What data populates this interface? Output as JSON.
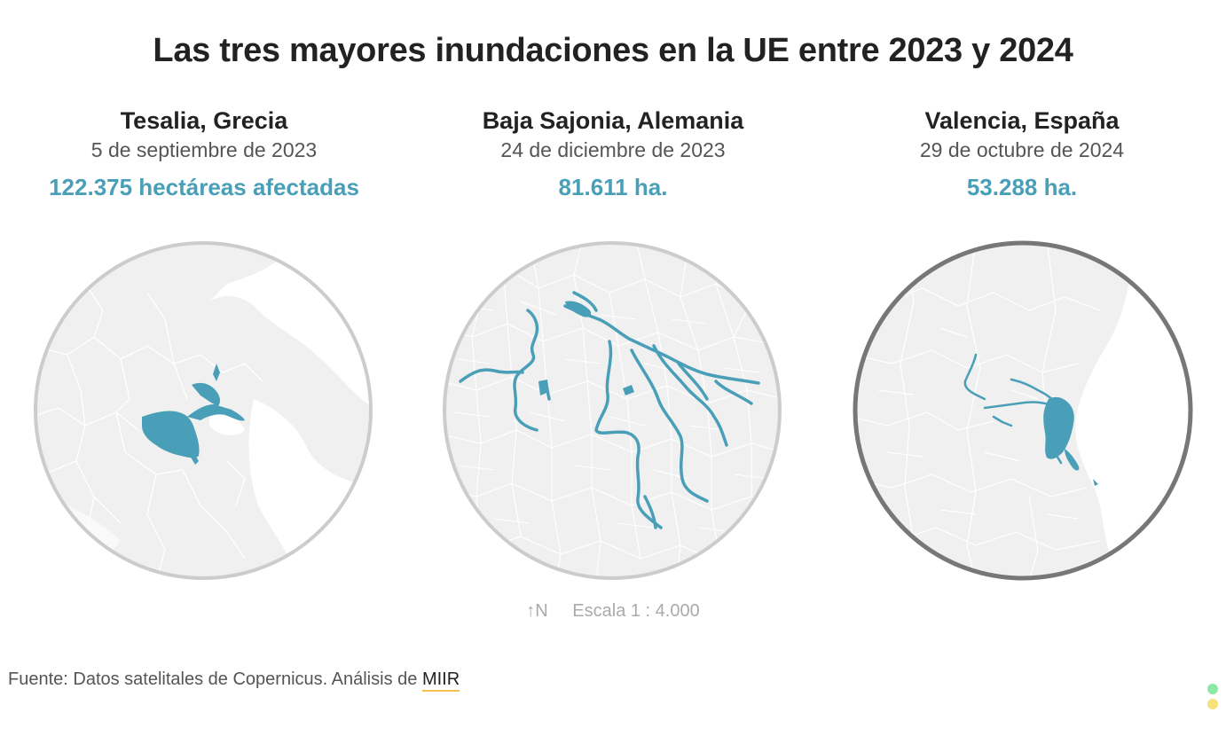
{
  "title": "Las tres mayores inundaciones en la UE entre 2023 y 2024",
  "panels": [
    {
      "place": "Tesalia, Grecia",
      "date": "5 de septiembre de 2023",
      "area": "122.375 hectáreas afectadas"
    },
    {
      "place": "Baja Sajonia, Alemania",
      "date": "24 de diciembre de 2023",
      "area": "81.611 ha."
    },
    {
      "place": "Valencia, España",
      "date": "29 de octubre de 2024",
      "area": "53.288 ha."
    }
  ],
  "scale": {
    "north": "↑N",
    "label": "Escala 1 : 4.000"
  },
  "footer": {
    "text": "Fuente: Datos satelitales de Copernicus. Análisis de ",
    "link": "MIIR"
  },
  "colors": {
    "flood": "#4a9fb8",
    "land": "#f0f0f0",
    "sea": "#ffffff",
    "border": "#ffffff",
    "ring": "#cccccc",
    "ring_active": "#777777",
    "dot_green": "#8ee8a6",
    "dot_yellow": "#f6e27a"
  }
}
